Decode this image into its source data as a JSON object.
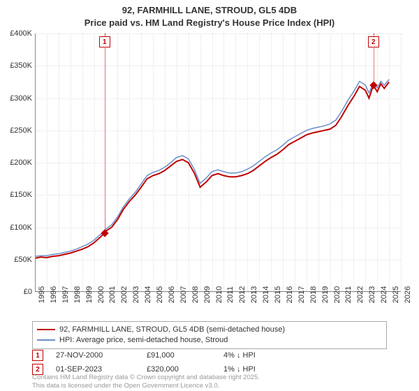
{
  "title_line1": "92, FARMHILL LANE, STROUD, GL5 4DB",
  "title_line2": "Price paid vs. HM Land Registry's House Price Index (HPI)",
  "chart": {
    "type": "line",
    "background_color": "#ffffff",
    "grid_color": "#e0e0e0",
    "axis_color": "#888888",
    "x_years": [
      1995,
      1996,
      1997,
      1998,
      1999,
      2000,
      2001,
      2002,
      2003,
      2004,
      2005,
      2006,
      2007,
      2008,
      2009,
      2010,
      2011,
      2012,
      2013,
      2014,
      2015,
      2016,
      2017,
      2018,
      2019,
      2020,
      2021,
      2022,
      2023,
      2024,
      2025,
      2026
    ],
    "xlim": [
      1995,
      2026
    ],
    "ylim": [
      0,
      400000
    ],
    "ytick_step": 50000,
    "y_tick_labels": [
      "£0",
      "£50K",
      "£100K",
      "£150K",
      "£200K",
      "£250K",
      "£300K",
      "£350K",
      "£400K"
    ],
    "series": [
      {
        "name": "price_paid",
        "label": "92, FARMHILL LANE, STROUD, GL5 4DB (semi-detached house)",
        "color": "#c00000",
        "line_width": 2,
        "points": [
          [
            1995.0,
            52000
          ],
          [
            1995.5,
            54000
          ],
          [
            1996.0,
            53000
          ],
          [
            1996.5,
            55000
          ],
          [
            1997.0,
            56000
          ],
          [
            1997.5,
            58000
          ],
          [
            1998.0,
            60000
          ],
          [
            1998.5,
            63000
          ],
          [
            1999.0,
            66000
          ],
          [
            1999.5,
            70000
          ],
          [
            2000.0,
            76000
          ],
          [
            2000.5,
            84000
          ],
          [
            2000.9,
            91000
          ],
          [
            2001.0,
            94000
          ],
          [
            2001.5,
            100000
          ],
          [
            2002.0,
            112000
          ],
          [
            2002.5,
            128000
          ],
          [
            2003.0,
            140000
          ],
          [
            2003.5,
            150000
          ],
          [
            2004.0,
            162000
          ],
          [
            2004.5,
            175000
          ],
          [
            2005.0,
            180000
          ],
          [
            2005.5,
            183000
          ],
          [
            2006.0,
            188000
          ],
          [
            2006.5,
            195000
          ],
          [
            2007.0,
            202000
          ],
          [
            2007.5,
            205000
          ],
          [
            2008.0,
            200000
          ],
          [
            2008.5,
            184000
          ],
          [
            2009.0,
            162000
          ],
          [
            2009.5,
            170000
          ],
          [
            2010.0,
            180000
          ],
          [
            2010.5,
            183000
          ],
          [
            2011.0,
            180000
          ],
          [
            2011.5,
            178000
          ],
          [
            2012.0,
            178000
          ],
          [
            2012.5,
            180000
          ],
          [
            2013.0,
            183000
          ],
          [
            2013.5,
            188000
          ],
          [
            2014.0,
            195000
          ],
          [
            2014.5,
            202000
          ],
          [
            2015.0,
            208000
          ],
          [
            2015.5,
            213000
          ],
          [
            2016.0,
            220000
          ],
          [
            2016.5,
            228000
          ],
          [
            2017.0,
            233000
          ],
          [
            2017.5,
            238000
          ],
          [
            2018.0,
            243000
          ],
          [
            2018.5,
            246000
          ],
          [
            2019.0,
            248000
          ],
          [
            2019.5,
            250000
          ],
          [
            2020.0,
            252000
          ],
          [
            2020.5,
            258000
          ],
          [
            2021.0,
            272000
          ],
          [
            2021.5,
            288000
          ],
          [
            2022.0,
            302000
          ],
          [
            2022.5,
            318000
          ],
          [
            2023.0,
            312000
          ],
          [
            2023.3,
            300000
          ],
          [
            2023.67,
            320000
          ],
          [
            2024.0,
            310000
          ],
          [
            2024.3,
            322000
          ],
          [
            2024.6,
            315000
          ],
          [
            2025.0,
            325000
          ]
        ]
      },
      {
        "name": "hpi",
        "label": "HPI: Average price, semi-detached house, Stroud",
        "color": "#6a8fc7",
        "line_width": 1.5,
        "points": [
          [
            1995.0,
            55000
          ],
          [
            1995.5,
            56000
          ],
          [
            1996.0,
            56000
          ],
          [
            1996.5,
            58000
          ],
          [
            1997.0,
            59000
          ],
          [
            1997.5,
            61000
          ],
          [
            1998.0,
            63000
          ],
          [
            1998.5,
            66000
          ],
          [
            1999.0,
            70000
          ],
          [
            1999.5,
            74000
          ],
          [
            2000.0,
            80000
          ],
          [
            2000.5,
            88000
          ],
          [
            2000.9,
            94000
          ],
          [
            2001.0,
            97000
          ],
          [
            2001.5,
            104000
          ],
          [
            2002.0,
            116000
          ],
          [
            2002.5,
            132000
          ],
          [
            2003.0,
            144000
          ],
          [
            2003.5,
            154000
          ],
          [
            2004.0,
            167000
          ],
          [
            2004.5,
            180000
          ],
          [
            2005.0,
            185000
          ],
          [
            2005.5,
            188000
          ],
          [
            2006.0,
            193000
          ],
          [
            2006.5,
            200000
          ],
          [
            2007.0,
            208000
          ],
          [
            2007.5,
            211000
          ],
          [
            2008.0,
            206000
          ],
          [
            2008.5,
            190000
          ],
          [
            2009.0,
            168000
          ],
          [
            2009.5,
            176000
          ],
          [
            2010.0,
            186000
          ],
          [
            2010.5,
            189000
          ],
          [
            2011.0,
            186000
          ],
          [
            2011.5,
            184000
          ],
          [
            2012.0,
            184000
          ],
          [
            2012.5,
            186000
          ],
          [
            2013.0,
            190000
          ],
          [
            2013.5,
            195000
          ],
          [
            2014.0,
            202000
          ],
          [
            2014.5,
            209000
          ],
          [
            2015.0,
            215000
          ],
          [
            2015.5,
            220000
          ],
          [
            2016.0,
            227000
          ],
          [
            2016.5,
            235000
          ],
          [
            2017.0,
            240000
          ],
          [
            2017.5,
            245000
          ],
          [
            2018.0,
            250000
          ],
          [
            2018.5,
            253000
          ],
          [
            2019.0,
            255000
          ],
          [
            2019.5,
            257000
          ],
          [
            2020.0,
            260000
          ],
          [
            2020.5,
            266000
          ],
          [
            2021.0,
            280000
          ],
          [
            2021.5,
            296000
          ],
          [
            2022.0,
            310000
          ],
          [
            2022.5,
            326000
          ],
          [
            2023.0,
            320000
          ],
          [
            2023.3,
            308000
          ],
          [
            2023.67,
            324000
          ],
          [
            2024.0,
            316000
          ],
          [
            2024.3,
            326000
          ],
          [
            2024.6,
            320000
          ],
          [
            2025.0,
            329000
          ]
        ]
      }
    ],
    "markers": [
      {
        "label": "1",
        "x": 2000.9,
        "y": 91000,
        "color": "#c00000"
      },
      {
        "label": "2",
        "x": 2023.67,
        "y": 320000,
        "color": "#c00000"
      }
    ]
  },
  "legend": {
    "border_color": "#aaaaaa",
    "items": [
      {
        "color": "#c00000",
        "text": "92, FARMHILL LANE, STROUD, GL5 4DB (semi-detached house)"
      },
      {
        "color": "#6a8fc7",
        "text": "HPI: Average price, semi-detached house, Stroud"
      }
    ]
  },
  "callout_rows": [
    {
      "badge": "1",
      "date": "27-NOV-2000",
      "price": "£91,000",
      "delta": "4% ↓ HPI"
    },
    {
      "badge": "2",
      "date": "01-SEP-2023",
      "price": "£320,000",
      "delta": "1% ↓ HPI"
    }
  ],
  "footer_line1": "Contains HM Land Registry data © Crown copyright and database right 2025.",
  "footer_line2": "This data is licensed under the Open Government Licence v3.0."
}
